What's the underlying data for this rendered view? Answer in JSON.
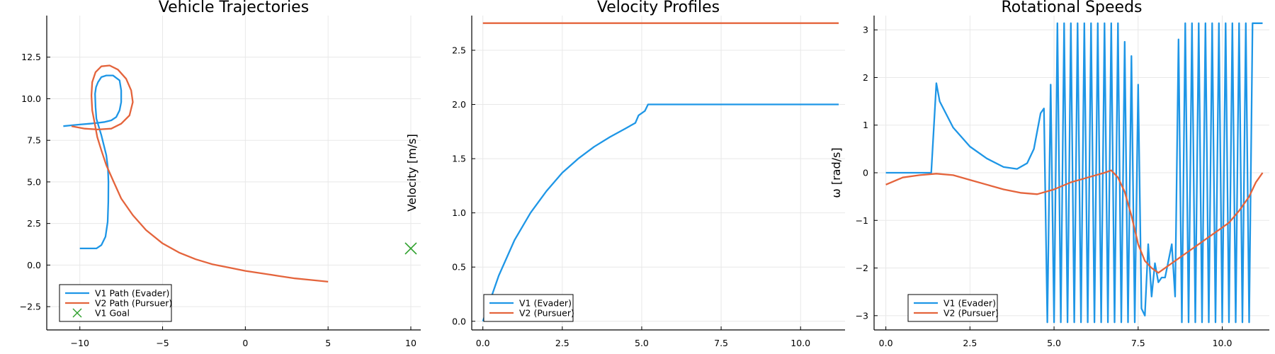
{
  "colors": {
    "v1": "#1e96e6",
    "v2": "#e4643c",
    "goal": "#2ea02c"
  },
  "chart_data": [
    {
      "type": "line",
      "title": "Vehicle Trajectories",
      "xlabel": "",
      "ylabel": "",
      "xlim": [
        -12,
        10.6
      ],
      "ylim": [
        -3.9,
        15.0
      ],
      "xticks": [
        -10,
        -5,
        0,
        5,
        10
      ],
      "xtick_labels": [
        "−10",
        "−5",
        "0",
        "5",
        "10"
      ],
      "yticks": [
        -2.5,
        0,
        2.5,
        5,
        7.5,
        10,
        12.5
      ],
      "ytick_labels": [
        "−2.5",
        "0.0",
        "2.5",
        "5.0",
        "7.5",
        "10.0",
        "12.5"
      ],
      "grid": true,
      "legend_position": "bottom-left",
      "series": [
        {
          "name": "V1 Path (Evader)",
          "color_key": "v1",
          "kind": "line",
          "x": [
            -10,
            -9.0,
            -8.7,
            -8.45,
            -8.32,
            -8.28,
            -8.27,
            -8.3,
            -8.4,
            -8.55,
            -8.7,
            -8.85,
            -9.0,
            -9.05,
            -9.08,
            -9.02,
            -8.9,
            -8.7,
            -8.4,
            -8.0,
            -7.6,
            -7.5,
            -7.5,
            -7.6,
            -7.8,
            -8.1,
            -8.5,
            -8.9,
            -9.4,
            -10,
            -10.5,
            -11.0
          ],
          "y": [
            1.0,
            1.0,
            1.2,
            1.7,
            2.6,
            3.8,
            5.0,
            5.8,
            6.6,
            7.2,
            7.8,
            8.3,
            8.8,
            9.5,
            10.3,
            10.7,
            11.0,
            11.3,
            11.4,
            11.4,
            11.1,
            10.5,
            9.8,
            9.3,
            8.9,
            8.7,
            8.6,
            8.55,
            8.5,
            8.45,
            8.4,
            8.35
          ]
        },
        {
          "name": "V2 Path (Pursuer)",
          "color_key": "v2",
          "kind": "line",
          "x": [
            5,
            4,
            3,
            2,
            1,
            0,
            -1,
            -2,
            -3,
            -4,
            -5,
            -6,
            -6.8,
            -7.5,
            -8.0,
            -8.4,
            -8.7,
            -8.95,
            -9.1,
            -9.25,
            -9.3,
            -9.25,
            -9.05,
            -8.7,
            -8.2,
            -7.7,
            -7.2,
            -6.9,
            -6.8,
            -7.0,
            -7.5,
            -8.1,
            -8.9,
            -9.7,
            -10.5
          ],
          "y": [
            -1.0,
            -0.9,
            -0.8,
            -0.65,
            -0.5,
            -0.35,
            -0.15,
            0.05,
            0.35,
            0.75,
            1.3,
            2.1,
            3.0,
            4.0,
            5.1,
            6.0,
            6.9,
            7.7,
            8.5,
            9.3,
            10.2,
            11.0,
            11.6,
            11.95,
            12.0,
            11.75,
            11.2,
            10.5,
            9.8,
            9.0,
            8.5,
            8.2,
            8.15,
            8.2,
            8.35
          ]
        },
        {
          "name": "V1 Goal",
          "color_key": "goal",
          "kind": "marker",
          "x": [
            10
          ],
          "y": [
            1.0
          ]
        }
      ]
    },
    {
      "type": "line",
      "title": "Velocity Profiles",
      "xlabel": "",
      "ylabel": "Velocity [m/s]",
      "xlim": [
        -0.35,
        11.4
      ],
      "ylim": [
        -0.08,
        2.82
      ],
      "xticks": [
        0,
        2.5,
        5,
        7.5,
        10
      ],
      "xtick_labels": [
        "0.0",
        "2.5",
        "5.0",
        "7.5",
        "10.0"
      ],
      "yticks": [
        0,
        0.5,
        1.0,
        1.5,
        2.0,
        2.5
      ],
      "ytick_labels": [
        "0.0",
        "0.5",
        "1.0",
        "1.5",
        "2.0",
        "2.5"
      ],
      "grid": true,
      "legend_position": "bottom-left",
      "series": [
        {
          "name": "V1 (Evader)",
          "color_key": "v1",
          "kind": "line",
          "x": [
            0,
            0.5,
            1.0,
            1.5,
            2.0,
            2.5,
            3.0,
            3.5,
            4.0,
            4.5,
            4.8,
            4.9,
            5.0,
            5.1,
            5.2,
            5.5,
            6.0,
            7.0,
            8.0,
            9.0,
            10.0,
            11.2
          ],
          "y": [
            0.0,
            0.42,
            0.75,
            1.0,
            1.2,
            1.37,
            1.5,
            1.61,
            1.7,
            1.78,
            1.83,
            1.9,
            1.92,
            1.94,
            2.0,
            2.0,
            2.0,
            2.0,
            2.0,
            2.0,
            2.0,
            2.0
          ]
        },
        {
          "name": "V2 (Pursuer)",
          "color_key": "v2",
          "kind": "line",
          "x": [
            0,
            11.2
          ],
          "y": [
            2.75,
            2.75
          ]
        }
      ]
    },
    {
      "type": "line",
      "title": "Rotational Speeds",
      "xlabel": "",
      "ylabel": "ω [rad/s]",
      "xlim": [
        -0.35,
        11.4
      ],
      "ylim": [
        -3.3,
        3.3
      ],
      "xticks": [
        0,
        2.5,
        5,
        7.5,
        10
      ],
      "xtick_labels": [
        "0.0",
        "2.5",
        "5.0",
        "7.5",
        "10.0"
      ],
      "yticks": [
        -3,
        -2,
        -1,
        0,
        1,
        2,
        3
      ],
      "ytick_labels": [
        "−3",
        "−2",
        "−1",
        "0",
        "1",
        "2",
        "3"
      ],
      "grid": true,
      "legend_position": "bottom-left",
      "series": [
        {
          "name": "V1 (Evader)",
          "color_key": "v1",
          "kind": "line",
          "x": [
            0,
            1.35,
            1.5,
            1.6,
            2.0,
            2.5,
            3.0,
            3.5,
            3.9,
            4.2,
            4.4,
            4.6,
            4.7,
            4.8,
            4.9,
            5.0,
            5.1,
            5.2,
            5.3,
            5.4,
            5.5,
            5.6,
            5.7,
            5.8,
            5.9,
            6.0,
            6.1,
            6.2,
            6.3,
            6.4,
            6.5,
            6.6,
            6.7,
            6.8,
            6.9,
            7.0,
            7.1,
            7.2,
            7.3,
            7.4,
            7.5,
            7.6,
            7.7,
            7.8,
            7.9,
            8.0,
            8.1,
            8.2,
            8.3,
            8.5,
            8.6,
            8.7,
            8.8,
            8.9,
            9.0,
            9.1,
            9.2,
            9.3,
            9.4,
            9.5,
            9.6,
            9.7,
            9.8,
            9.9,
            10.0,
            10.1,
            10.2,
            10.3,
            10.4,
            10.5,
            10.6,
            10.7,
            10.8,
            10.9,
            11.0,
            11.2
          ],
          "y": [
            0,
            0,
            1.88,
            1.5,
            0.95,
            0.55,
            0.3,
            0.12,
            0.08,
            0.2,
            0.5,
            1.25,
            1.35,
            -3.14,
            1.85,
            -3.14,
            3.14,
            -3.14,
            3.14,
            -3.14,
            3.14,
            -3.14,
            3.14,
            -3.14,
            3.14,
            -3.14,
            3.14,
            -3.14,
            3.14,
            -3.14,
            3.14,
            -3.14,
            3.14,
            -3.14,
            3.14,
            -3.14,
            2.75,
            -3.14,
            2.45,
            -3.14,
            1.85,
            -2.85,
            -3.0,
            -1.5,
            -2.6,
            -1.9,
            -2.3,
            -2.2,
            -2.2,
            -1.5,
            -2.6,
            2.8,
            -3.14,
            3.14,
            -3.14,
            3.14,
            -3.14,
            3.14,
            -3.14,
            3.14,
            -3.14,
            3.14,
            -3.14,
            3.14,
            -3.14,
            3.14,
            -3.14,
            3.14,
            -3.14,
            3.14,
            -3.14,
            3.14,
            -3.14,
            3.14,
            3.14,
            3.14
          ]
        },
        {
          "name": "V2 (Pursuer)",
          "color_key": "v2",
          "kind": "line",
          "x": [
            0,
            0.5,
            1.0,
            1.5,
            2.0,
            2.5,
            3.0,
            3.5,
            4.0,
            4.5,
            5.0,
            5.5,
            6.0,
            6.5,
            6.7,
            6.9,
            7.1,
            7.3,
            7.5,
            7.7,
            7.9,
            8.1,
            8.4,
            8.7,
            9.0,
            9.3,
            9.6,
            9.9,
            10.2,
            10.5,
            10.8,
            11.0,
            11.2
          ],
          "y": [
            -0.25,
            -0.1,
            -0.05,
            -0.02,
            -0.05,
            -0.15,
            -0.25,
            -0.35,
            -0.42,
            -0.45,
            -0.35,
            -0.2,
            -0.1,
            0.0,
            0.05,
            -0.1,
            -0.4,
            -0.9,
            -1.5,
            -1.85,
            -2.0,
            -2.1,
            -1.95,
            -1.8,
            -1.65,
            -1.5,
            -1.35,
            -1.2,
            -1.05,
            -0.8,
            -0.5,
            -0.2,
            0.0
          ]
        }
      ]
    }
  ]
}
